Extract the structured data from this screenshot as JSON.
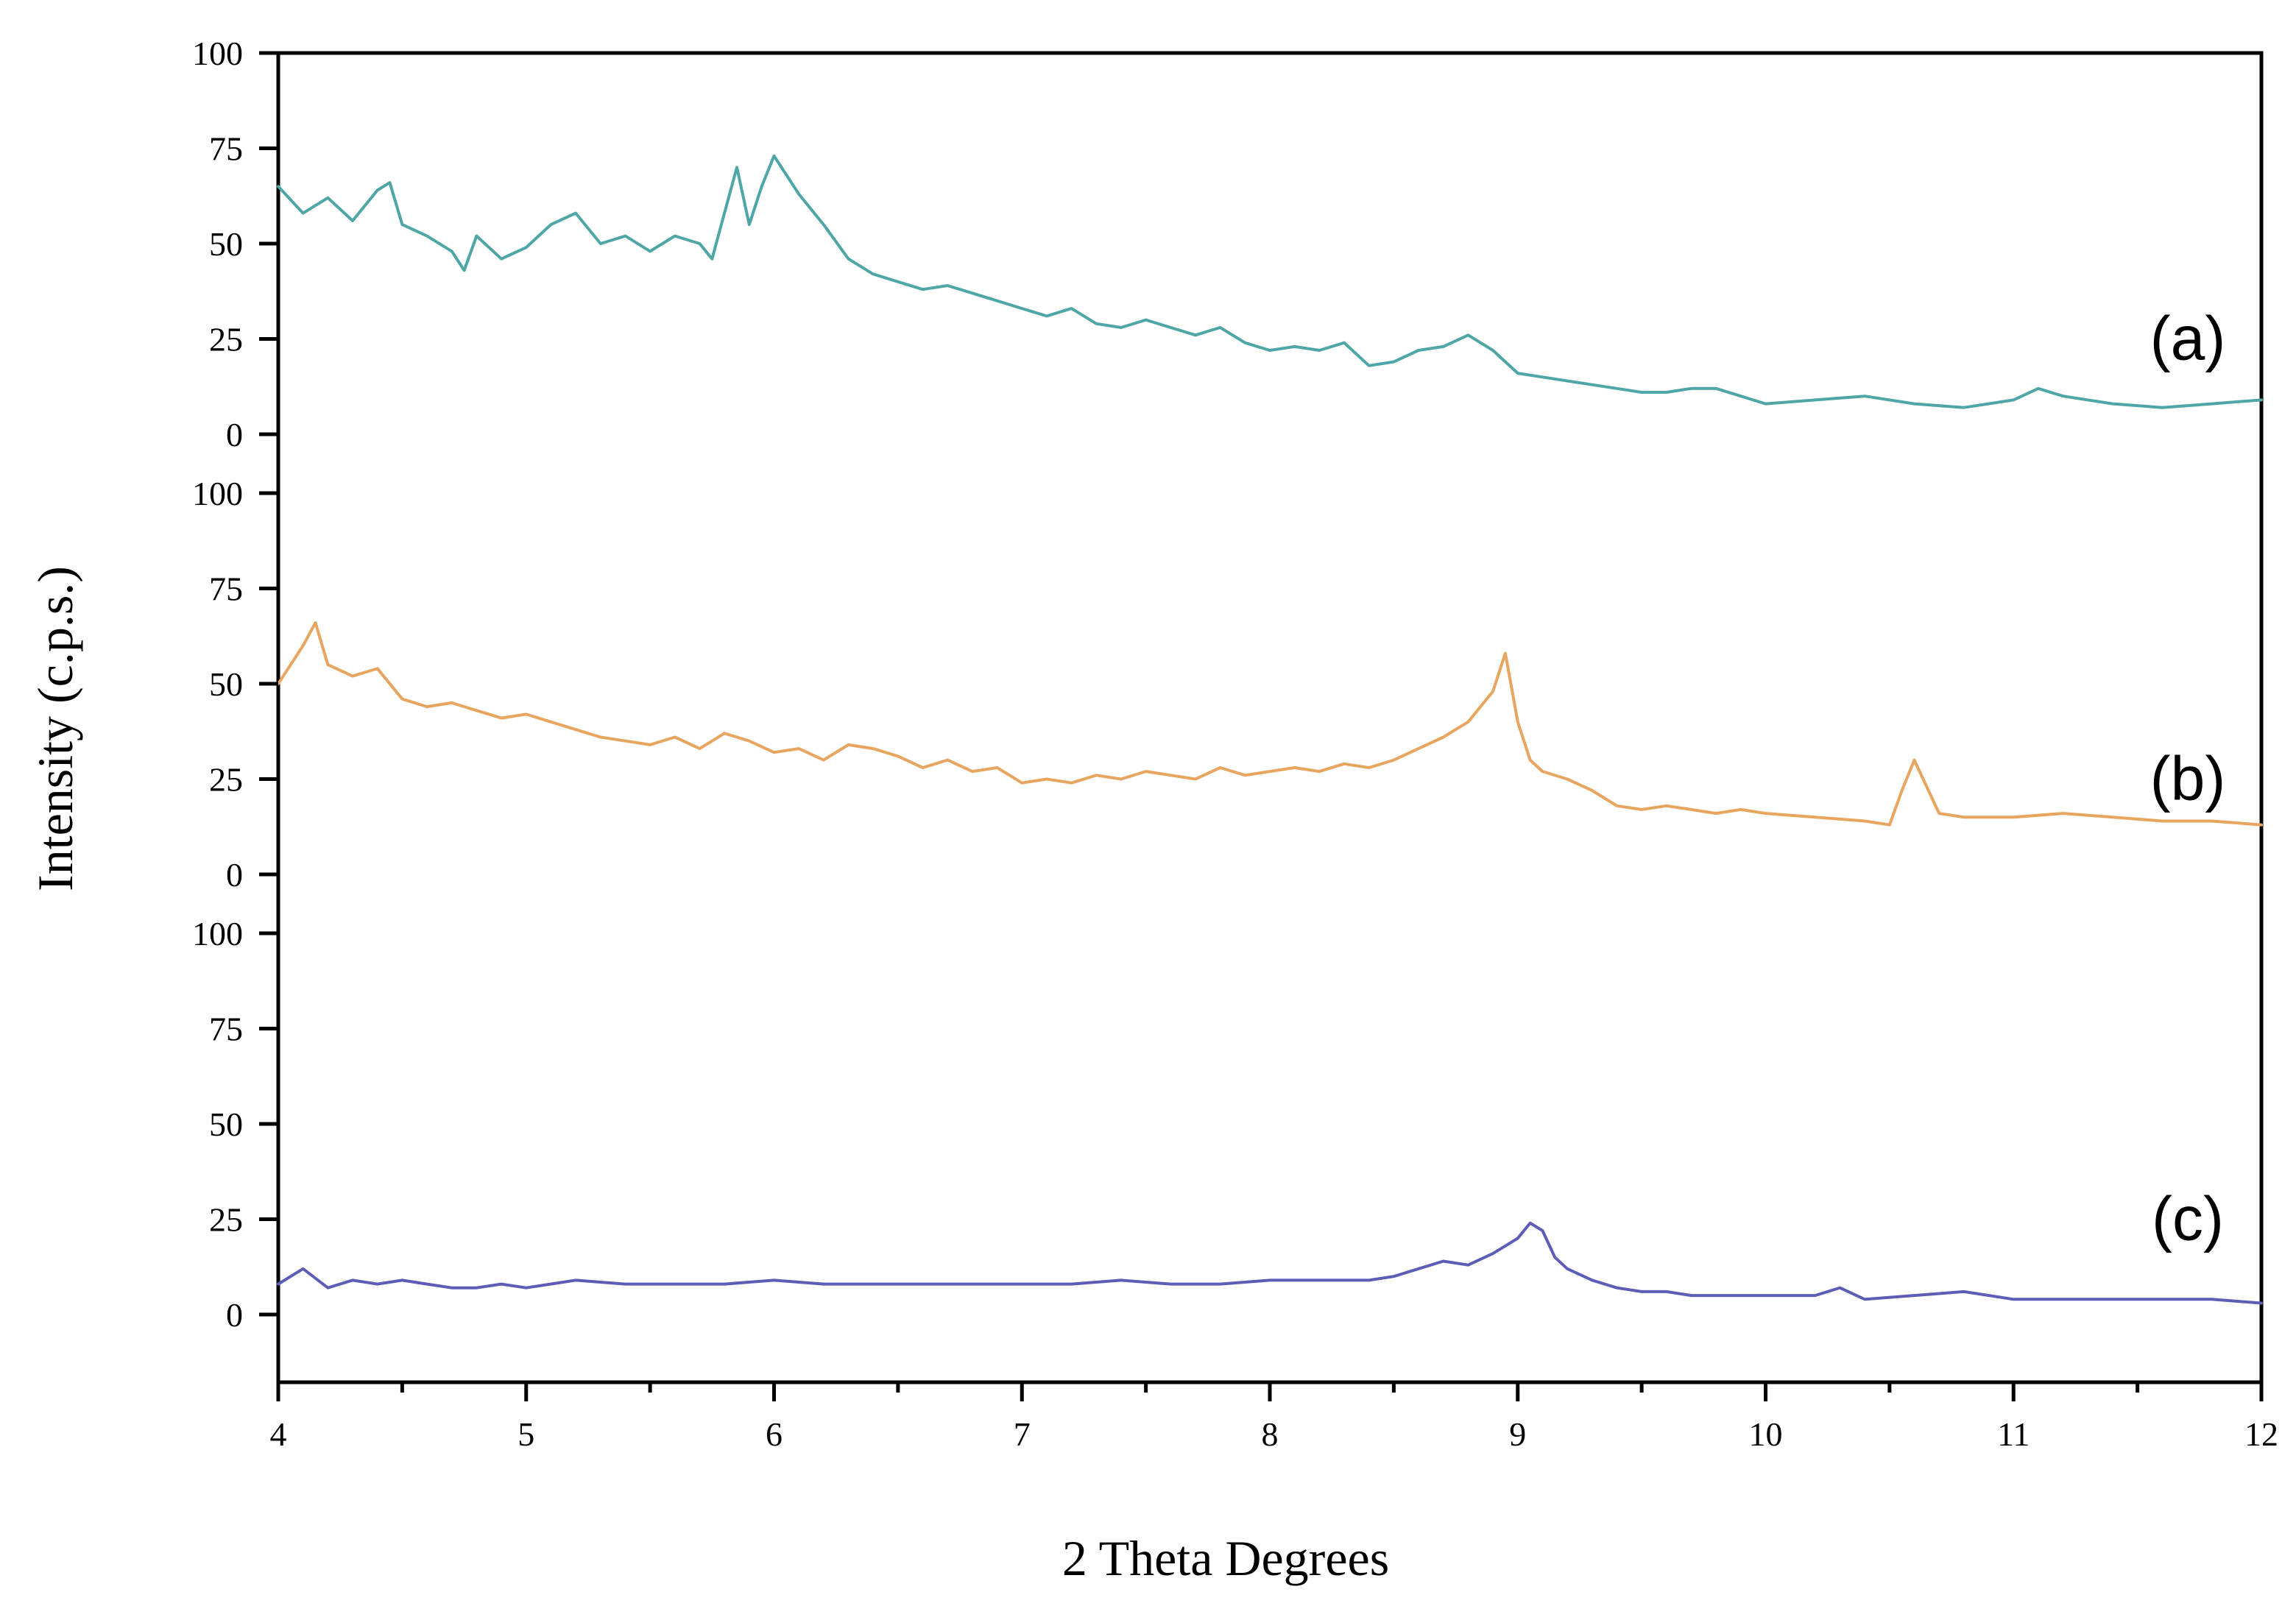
{
  "chart_data": {
    "type": "line",
    "xlabel": "2 Theta Degrees",
    "ylabel": "Intensity (c.p.s.)",
    "xlim": [
      4,
      12
    ],
    "x_ticks": [
      "4",
      "5",
      "6",
      "7",
      "8",
      "9",
      "10",
      "11",
      "12"
    ],
    "y_ticks": [
      "0",
      "25",
      "50",
      "75",
      "100"
    ],
    "panel_ylim": [
      0,
      100
    ],
    "grid": false,
    "panels": [
      {
        "label": "(a)",
        "color": "#4ea6a6",
        "x": [
          4.0,
          4.1,
          4.2,
          4.3,
          4.4,
          4.45,
          4.5,
          4.6,
          4.7,
          4.75,
          4.8,
          4.9,
          5.0,
          5.1,
          5.2,
          5.3,
          5.4,
          5.5,
          5.6,
          5.7,
          5.75,
          5.8,
          5.85,
          5.9,
          5.95,
          6.0,
          6.1,
          6.2,
          6.3,
          6.4,
          6.5,
          6.6,
          6.7,
          6.8,
          6.9,
          7.0,
          7.1,
          7.2,
          7.3,
          7.4,
          7.5,
          7.6,
          7.7,
          7.8,
          7.9,
          8.0,
          8.1,
          8.2,
          8.3,
          8.4,
          8.5,
          8.6,
          8.7,
          8.8,
          8.9,
          9.0,
          9.1,
          9.2,
          9.3,
          9.4,
          9.5,
          9.6,
          9.7,
          9.8,
          9.9,
          10.0,
          10.2,
          10.4,
          10.6,
          10.8,
          11.0,
          11.1,
          11.2,
          11.4,
          11.6,
          11.8,
          12.0
        ],
        "y": [
          65,
          58,
          62,
          56,
          64,
          66,
          55,
          52,
          48,
          43,
          52,
          46,
          49,
          55,
          58,
          50,
          52,
          48,
          52,
          50,
          46,
          58,
          70,
          55,
          65,
          73,
          63,
          55,
          46,
          42,
          40,
          38,
          39,
          37,
          35,
          33,
          31,
          33,
          29,
          28,
          30,
          28,
          26,
          28,
          24,
          22,
          23,
          22,
          24,
          18,
          19,
          22,
          23,
          26,
          22,
          16,
          15,
          14,
          13,
          12,
          11,
          11,
          12,
          12,
          10,
          8,
          9,
          10,
          8,
          7,
          9,
          12,
          10,
          8,
          7,
          8,
          9
        ]
      },
      {
        "label": "(b)",
        "color": "#e8a55f",
        "x": [
          4.0,
          4.1,
          4.15,
          4.2,
          4.3,
          4.4,
          4.5,
          4.6,
          4.7,
          4.8,
          4.9,
          5.0,
          5.1,
          5.2,
          5.3,
          5.4,
          5.5,
          5.6,
          5.7,
          5.8,
          5.9,
          6.0,
          6.1,
          6.2,
          6.3,
          6.4,
          6.5,
          6.6,
          6.7,
          6.8,
          6.9,
          7.0,
          7.1,
          7.2,
          7.3,
          7.4,
          7.5,
          7.6,
          7.7,
          7.8,
          7.9,
          8.0,
          8.1,
          8.2,
          8.3,
          8.4,
          8.5,
          8.6,
          8.7,
          8.8,
          8.9,
          8.95,
          9.0,
          9.05,
          9.1,
          9.2,
          9.3,
          9.4,
          9.5,
          9.6,
          9.7,
          9.8,
          9.9,
          10.0,
          10.2,
          10.4,
          10.5,
          10.55,
          10.6,
          10.7,
          10.8,
          11.0,
          11.2,
          11.4,
          11.6,
          11.8,
          12.0
        ],
        "y": [
          50,
          60,
          66,
          55,
          52,
          54,
          46,
          44,
          45,
          43,
          41,
          42,
          40,
          38,
          36,
          35,
          34,
          36,
          33,
          37,
          35,
          32,
          33,
          30,
          34,
          33,
          31,
          28,
          30,
          27,
          28,
          24,
          25,
          24,
          26,
          25,
          27,
          26,
          25,
          28,
          26,
          27,
          28,
          27,
          29,
          28,
          30,
          33,
          36,
          40,
          48,
          58,
          40,
          30,
          27,
          25,
          22,
          18,
          17,
          18,
          17,
          16,
          17,
          16,
          15,
          14,
          13,
          22,
          30,
          16,
          15,
          15,
          16,
          15,
          14,
          14,
          13
        ]
      },
      {
        "label": "(c)",
        "color": "#5d5db8",
        "x": [
          4.0,
          4.1,
          4.2,
          4.3,
          4.4,
          4.5,
          4.6,
          4.7,
          4.8,
          4.9,
          5.0,
          5.2,
          5.4,
          5.6,
          5.8,
          6.0,
          6.2,
          6.4,
          6.6,
          6.8,
          7.0,
          7.2,
          7.4,
          7.6,
          7.8,
          8.0,
          8.2,
          8.4,
          8.5,
          8.6,
          8.7,
          8.8,
          8.9,
          9.0,
          9.05,
          9.1,
          9.15,
          9.2,
          9.3,
          9.4,
          9.5,
          9.6,
          9.7,
          9.8,
          10.0,
          10.2,
          10.3,
          10.4,
          10.6,
          10.8,
          11.0,
          11.2,
          11.4,
          11.6,
          11.8,
          12.0
        ],
        "y": [
          8,
          12,
          7,
          9,
          8,
          9,
          8,
          7,
          7,
          8,
          7,
          9,
          8,
          8,
          8,
          9,
          8,
          8,
          8,
          8,
          8,
          8,
          9,
          8,
          8,
          9,
          9,
          9,
          10,
          12,
          14,
          13,
          16,
          20,
          24,
          22,
          15,
          12,
          9,
          7,
          6,
          6,
          5,
          5,
          5,
          5,
          7,
          4,
          5,
          6,
          4,
          4,
          4,
          4,
          4,
          3
        ]
      }
    ]
  }
}
